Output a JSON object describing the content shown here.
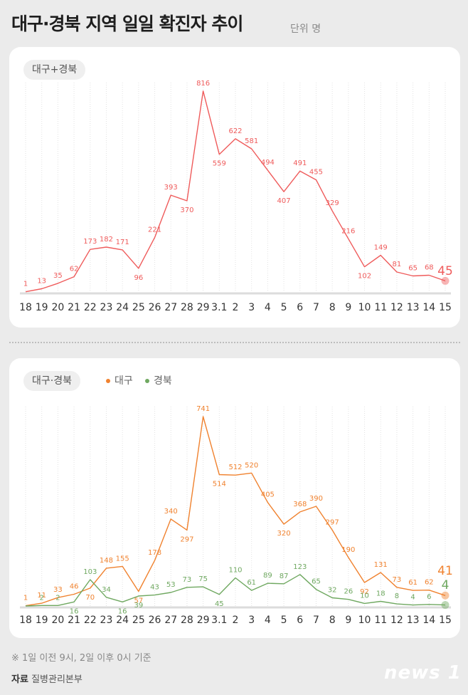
{
  "title": "대구·경북 지역 일일 확진자 추이",
  "unit_label": "단위 명",
  "footnote": "※ 1일 이전 9시, 2일 이후 0시 기준",
  "source_label": "자료",
  "source_value": "질병관리본부",
  "logo_text": "news 1",
  "colors": {
    "total": "#ef5b5b",
    "daegu": "#f0822f",
    "gyeongbuk": "#6fa860",
    "grid": "#e2e2e2",
    "tick": "#333333"
  },
  "chart_data": [
    {
      "type": "line",
      "panel_label": "대구+경북",
      "categories": [
        "18",
        "19",
        "20",
        "21",
        "22",
        "23",
        "24",
        "25",
        "26",
        "27",
        "28",
        "29",
        "3.1",
        "2",
        "3",
        "4",
        "5",
        "6",
        "7",
        "8",
        "9",
        "10",
        "11",
        "12",
        "13",
        "14",
        "15"
      ],
      "series": [
        {
          "values": [
            1,
            13,
            35,
            62,
            173,
            182,
            171,
            96,
            221,
            393,
            370,
            816,
            559,
            622,
            581,
            494,
            407,
            491,
            455,
            329,
            216,
            102,
            149,
            81,
            65,
            68,
            45
          ]
        }
      ],
      "last_value_label": "45",
      "ylim": [
        0,
        850
      ]
    },
    {
      "type": "line",
      "panel_label": "대구·경북",
      "legend": [
        {
          "name": "대구"
        },
        {
          "name": "경북"
        }
      ],
      "categories": [
        "18",
        "19",
        "20",
        "21",
        "22",
        "23",
        "24",
        "25",
        "26",
        "27",
        "28",
        "29",
        "3.1",
        "2",
        "3",
        "4",
        "5",
        "6",
        "7",
        "8",
        "9",
        "10",
        "11",
        "12",
        "13",
        "14",
        "15"
      ],
      "series": [
        {
          "name": "대구",
          "values": [
            1,
            11,
            33,
            46,
            70,
            148,
            155,
            57,
            178,
            340,
            297,
            741,
            514,
            512,
            520,
            405,
            320,
            368,
            390,
            297,
            190,
            92,
            131,
            73,
            61,
            62,
            41
          ]
        },
        {
          "name": "경북",
          "values": [
            0,
            2,
            2,
            16,
            103,
            34,
            16,
            39,
            43,
            53,
            73,
            75,
            45,
            110,
            61,
            89,
            87,
            123,
            65,
            32,
            26,
            10,
            18,
            8,
            4,
            6,
            4
          ]
        }
      ],
      "point_labels_gyeongbuk": [
        "",
        "2",
        "2",
        "16",
        "103",
        "34",
        "16",
        "39",
        "43",
        "53",
        "73",
        "75",
        "45",
        "110",
        "61",
        "89",
        "87",
        "123",
        "65",
        "32",
        "26",
        "10",
        "18",
        "8",
        "4",
        "6",
        ""
      ],
      "last_value_labels": {
        "daegu": "41",
        "gyeongbuk": "4"
      },
      "ylim": [
        0,
        780
      ]
    }
  ]
}
